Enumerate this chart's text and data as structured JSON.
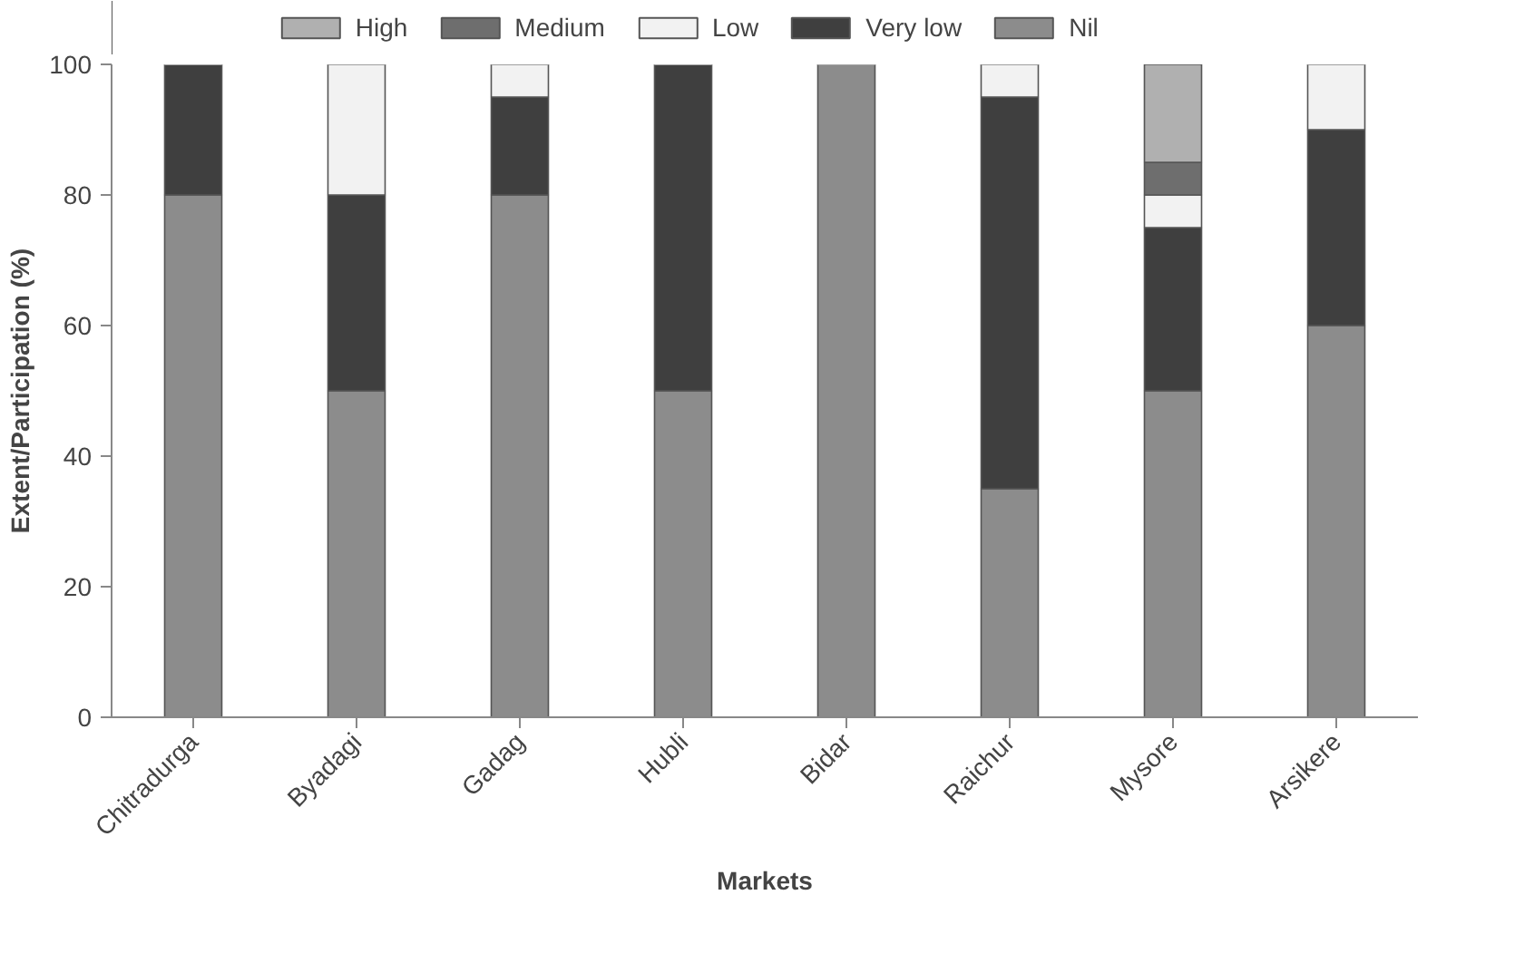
{
  "chart_data": {
    "type": "bar",
    "stacked": true,
    "xlabel": "Markets",
    "ylabel": "Extent/Participation (%)",
    "categories": [
      "Chitradurga",
      "Byadagi",
      "Gadag",
      "Hubli",
      "Bidar",
      "Raichur",
      "Mysore",
      "Arsikere"
    ],
    "series": [
      {
        "name": "Nil",
        "color": "#8c8c8c",
        "values": [
          80,
          50,
          80,
          50,
          100,
          35,
          50,
          60
        ]
      },
      {
        "name": "Very low",
        "color": "#3f3f3f",
        "values": [
          20,
          30,
          15,
          50,
          0,
          60,
          25,
          30
        ]
      },
      {
        "name": "Low",
        "color": "#f2f2f2",
        "values": [
          0,
          20,
          5,
          0,
          0,
          5,
          5,
          10
        ]
      },
      {
        "name": "Medium",
        "color": "#6e6e6e",
        "values": [
          0,
          0,
          0,
          0,
          0,
          0,
          5,
          0
        ]
      },
      {
        "name": "High",
        "color": "#b0b0b0",
        "values": [
          0,
          0,
          0,
          0,
          0,
          0,
          15,
          0
        ]
      }
    ],
    "ylim": [
      0,
      100
    ],
    "yticks": [
      0,
      20,
      40,
      60,
      80,
      100
    ],
    "grid": false,
    "legend": "top"
  }
}
